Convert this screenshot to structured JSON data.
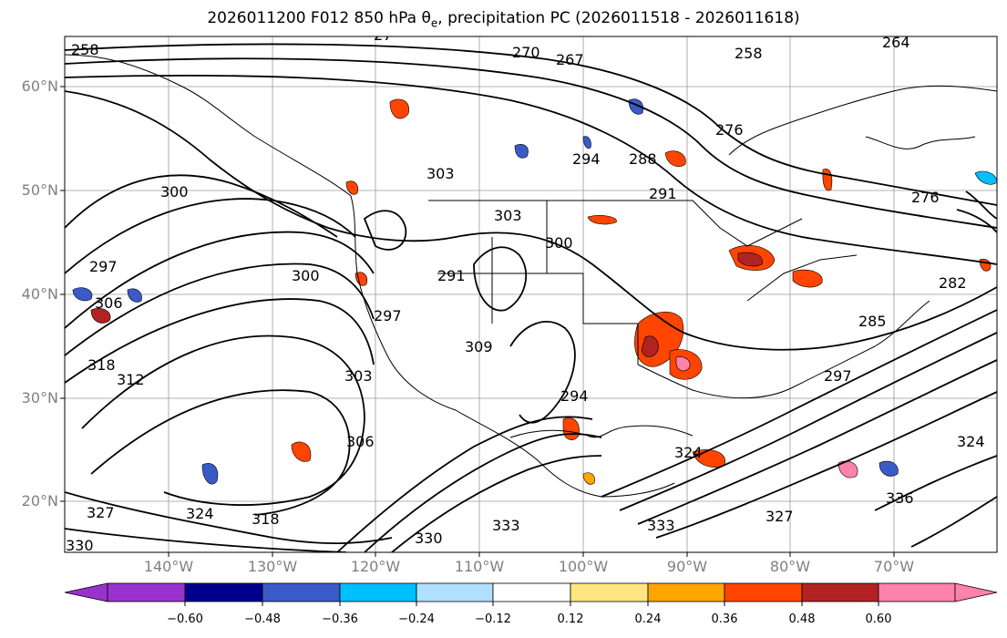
{
  "title": "2026011200 F012 850 hPa θ",
  "title_sub": "e",
  "title_rest": ", precipitation PC (2026011518 - 2026011618)",
  "lat_labels": [
    "60°N",
    "50°N",
    "40°N",
    "30°N",
    "20°N"
  ],
  "lon_labels": [
    "140°W",
    "130°W",
    "120°W",
    "110°W",
    "100°W",
    "90°W",
    "80°W",
    "70°W"
  ],
  "colorbar": {
    "ticks": [
      "−0.60",
      "−0.48",
      "−0.36",
      "−0.24",
      "−0.12",
      "0.12",
      "0.24",
      "0.36",
      "0.48",
      "0.60"
    ],
    "colors": [
      "#9932cc",
      "#00008b",
      "#3a5bc7",
      "#00bfff",
      "#b0e0ff",
      "#ffffff",
      "#ffe680",
      "#ffa500",
      "#ff4500",
      "#b22222",
      "#ff82ab"
    ]
  },
  "contour_labels": [
    "258",
    "270",
    "267",
    "264",
    "258",
    "276",
    "288",
    "294",
    "291",
    "303",
    "300",
    "303",
    "297",
    "300",
    "291",
    "297",
    "300",
    "309",
    "318",
    "312",
    "306",
    "303",
    "306",
    "294",
    "324",
    "318",
    "330",
    "327",
    "324",
    "333",
    "276",
    "282",
    "285",
    "297",
    "324",
    "327",
    "330",
    "333",
    "336",
    "27"
  ]
}
